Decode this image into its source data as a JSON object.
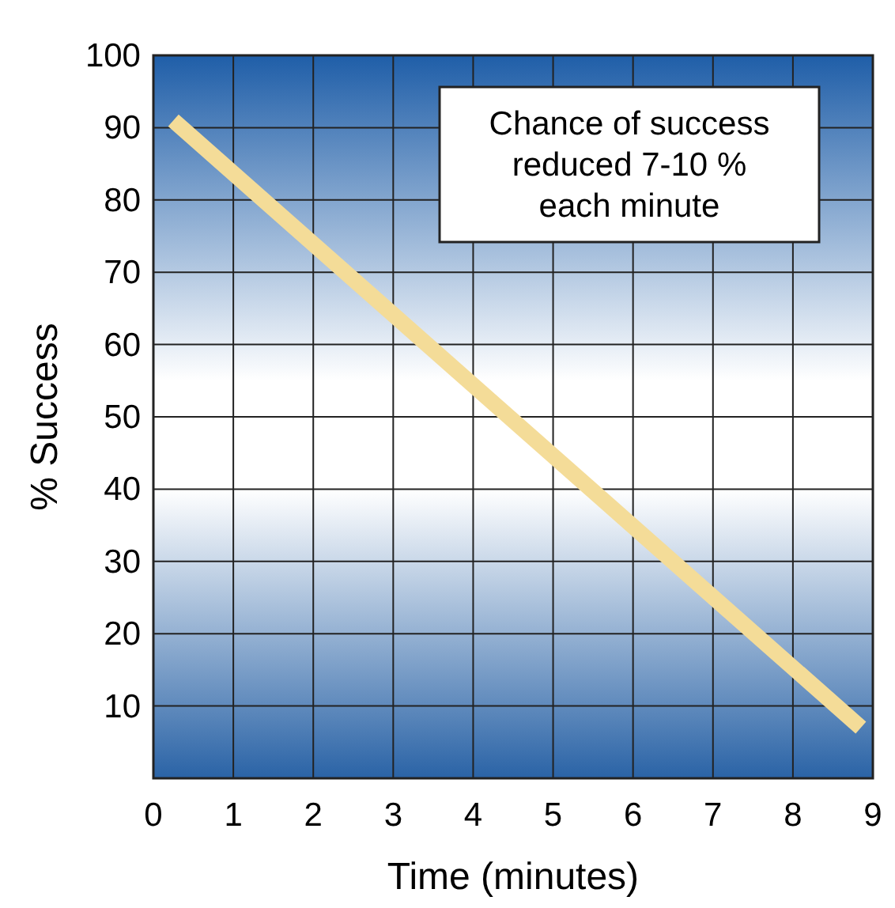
{
  "chart_data": {
    "type": "line",
    "xlabel": "Time (minutes)",
    "ylabel": "% Success",
    "xlim": [
      0,
      9
    ],
    "ylim": [
      0,
      100
    ],
    "xticks": [
      0,
      1,
      2,
      3,
      4,
      5,
      6,
      7,
      8,
      9
    ],
    "yticks": [
      10,
      20,
      30,
      40,
      50,
      60,
      70,
      80,
      90,
      100
    ],
    "grid": true,
    "line_style": "solid",
    "marker": "none",
    "series": [
      {
        "color": "#f4dc98",
        "x": [
          0.25,
          8.85
        ],
        "values": [
          91,
          7
        ]
      }
    ],
    "annotations": [
      "Chance of success\nreduced 7-10 %\neach minute"
    ]
  }
}
